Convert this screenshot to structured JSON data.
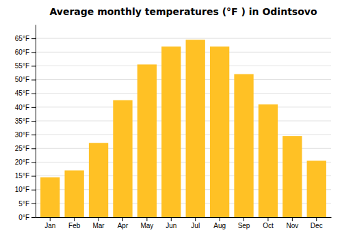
{
  "chart_data": {
    "type": "bar",
    "title": "Average monthly temperatures (°F ) in Odintsovo",
    "categories": [
      "Jan",
      "Feb",
      "Mar",
      "Apr",
      "May",
      "Jun",
      "Jul",
      "Aug",
      "Sep",
      "Oct",
      "Nov",
      "Dec"
    ],
    "values": [
      14.5,
      17,
      27,
      42.5,
      55.5,
      62,
      64.5,
      62,
      52,
      41,
      29.5,
      20.5
    ],
    "color": "#FFC125",
    "ylim": [
      0,
      70
    ],
    "yticks": [
      {
        "value": 0,
        "label": "0°F"
      },
      {
        "value": 5,
        "label": "5°F"
      },
      {
        "value": 10,
        "label": "10°F"
      },
      {
        "value": 15,
        "label": "15°F"
      },
      {
        "value": 20,
        "label": "20°F"
      },
      {
        "value": 25,
        "label": "25°F"
      },
      {
        "value": 30,
        "label": "30°F"
      },
      {
        "value": 35,
        "label": "35°F"
      },
      {
        "value": 40,
        "label": "40°F"
      },
      {
        "value": 45,
        "label": "45°F"
      },
      {
        "value": 50,
        "label": "50°F"
      },
      {
        "value": 55,
        "label": "55°F"
      },
      {
        "value": 60,
        "label": "60°F"
      },
      {
        "value": 65,
        "label": "65°F"
      }
    ],
    "grid": true
  }
}
